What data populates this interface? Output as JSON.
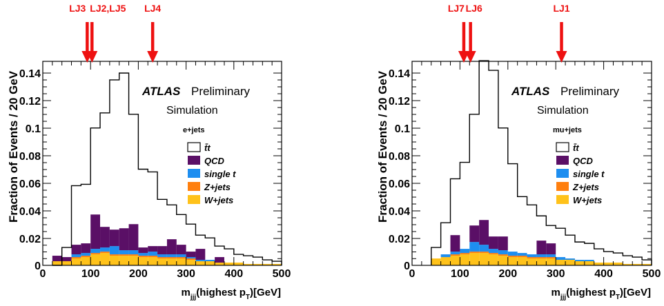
{
  "chart_data": [
    {
      "type": "bar",
      "stacked": true,
      "channel": "e+jets",
      "ylabel": "Fraction of Events / 20 GeV",
      "xlabel": "m_jjj(highest p_T)[GeV]",
      "xlabel_parts": {
        "main": "m",
        "sub": "jjj",
        "mid": "(highest p",
        "sub2": "T",
        "tail": ")[GeV]"
      },
      "atlas_label": "ATLAS",
      "preliminary_label": "Preliminary",
      "simulation_label": "Simulation",
      "xlim": [
        0,
        500
      ],
      "ylim": [
        0,
        0.15
      ],
      "xticks": [
        0,
        100,
        200,
        300,
        400,
        500
      ],
      "yticks": [
        0,
        0.02,
        0.04,
        0.06,
        0.08,
        0.1,
        0.12,
        0.14
      ],
      "ytick_labels": [
        "0",
        "0.02",
        "0.04",
        "0.06",
        "0.08",
        "0.1",
        "0.12",
        "0.14"
      ],
      "bin_edges": [
        20,
        40,
        60,
        80,
        100,
        120,
        140,
        160,
        180,
        200,
        220,
        240,
        260,
        280,
        300,
        320,
        340,
        360,
        380,
        400,
        420,
        440,
        460,
        480,
        500
      ],
      "legend": [
        {
          "name": "t̄t",
          "color": "#ffffff",
          "style": "outline"
        },
        {
          "name": "QCD",
          "color": "#5a0f66"
        },
        {
          "name": "single t",
          "color": "#1e8ef0"
        },
        {
          "name": "Z+jets",
          "color": "#ff7f0e"
        },
        {
          "name": "W+jets",
          "color": "#ffc21a"
        }
      ],
      "ttbar": [
        0.0,
        0.013,
        0.058,
        0.059,
        0.1,
        0.111,
        0.135,
        0.14,
        0.11,
        0.07,
        0.068,
        0.048,
        0.044,
        0.037,
        0.03,
        0.022,
        0.02,
        0.014,
        0.012,
        0.008,
        0.007,
        0.006,
        0.004,
        0.003
      ],
      "wjets": [
        0.003,
        0.003,
        0.005,
        0.006,
        0.008,
        0.009,
        0.007,
        0.007,
        0.007,
        0.006,
        0.006,
        0.005,
        0.005,
        0.005,
        0.004,
        0.003,
        0.003,
        0.002,
        0.002,
        0.002,
        0.001,
        0.001,
        0.001,
        0.001
      ],
      "zjets": [
        0.0,
        0.0,
        0.001,
        0.001,
        0.001,
        0.001,
        0.001,
        0.001,
        0.001,
        0.001,
        0.001,
        0.001,
        0.001,
        0.001,
        0.001,
        0.0,
        0.0,
        0.0,
        0.0,
        0.0,
        0.0,
        0.0,
        0.0,
        0.0
      ],
      "singlet": [
        0.0,
        0.0,
        0.002,
        0.002,
        0.003,
        0.003,
        0.006,
        0.003,
        0.003,
        0.002,
        0.003,
        0.002,
        0.002,
        0.002,
        0.001,
        0.001,
        0.001,
        0.0,
        0.0,
        0.0,
        0.0,
        0.0,
        0.0,
        0.0
      ],
      "qcd": [
        0.004,
        0.003,
        0.007,
        0.007,
        0.025,
        0.015,
        0.012,
        0.016,
        0.019,
        0.004,
        0.004,
        0.006,
        0.011,
        0.007,
        0.004,
        0.008,
        0.0,
        0.004,
        0.0,
        0.0,
        0.0,
        0.0,
        0.0,
        0.0
      ],
      "markers": [
        {
          "label": "LJ3",
          "x": 93
        },
        {
          "label": "LJ2,LJ5",
          "x": 103
        },
        {
          "label": "LJ4",
          "x": 230
        }
      ]
    },
    {
      "type": "bar",
      "stacked": true,
      "channel": "mu+jets",
      "ylabel": "Fraction of Events / 20 GeV",
      "xlabel": "m_jjj(highest p_T)[GeV]",
      "xlabel_parts": {
        "main": "m",
        "sub": "jjj",
        "mid": "(highest p",
        "sub2": "T",
        "tail": ")[GeV]"
      },
      "atlas_label": "ATLAS",
      "preliminary_label": "Preliminary",
      "simulation_label": "Simulation",
      "xlim": [
        0,
        500
      ],
      "ylim": [
        0,
        0.16
      ],
      "xticks": [
        0,
        100,
        200,
        300,
        400,
        500
      ],
      "yticks": [
        0,
        0.02,
        0.04,
        0.06,
        0.08,
        0.1,
        0.12,
        0.14
      ],
      "ytick_labels": [
        "0",
        "0.02",
        "0.04",
        "0.06",
        "0.08",
        "0.1",
        "0.12",
        "0.14"
      ],
      "bin_edges": [
        40,
        60,
        80,
        100,
        120,
        140,
        160,
        180,
        200,
        220,
        240,
        260,
        280,
        300,
        320,
        340,
        360,
        380,
        400,
        420,
        440,
        460,
        480,
        500
      ],
      "legend": [
        {
          "name": "t̄t",
          "color": "#ffffff",
          "style": "outline"
        },
        {
          "name": "QCD",
          "color": "#5a0f66"
        },
        {
          "name": "single t",
          "color": "#1e8ef0"
        },
        {
          "name": "Z+jets",
          "color": "#ff7f0e"
        },
        {
          "name": "W+jets",
          "color": "#ffc21a"
        }
      ],
      "ttbar": [
        0.013,
        0.031,
        0.063,
        0.075,
        0.11,
        0.149,
        0.142,
        0.1,
        0.074,
        0.05,
        0.044,
        0.036,
        0.029,
        0.027,
        0.022,
        0.017,
        0.016,
        0.012,
        0.01,
        0.009,
        0.007,
        0.006,
        0.004
      ],
      "wjets": [
        0.005,
        0.006,
        0.007,
        0.008,
        0.009,
        0.009,
        0.008,
        0.007,
        0.006,
        0.006,
        0.005,
        0.005,
        0.005,
        0.004,
        0.004,
        0.003,
        0.003,
        0.002,
        0.002,
        0.002,
        0.001,
        0.001,
        0.001
      ],
      "zjets": [
        0.0,
        0.0,
        0.001,
        0.001,
        0.001,
        0.001,
        0.001,
        0.001,
        0.001,
        0.001,
        0.001,
        0.001,
        0.001,
        0.0,
        0.0,
        0.0,
        0.0,
        0.0,
        0.0,
        0.0,
        0.0,
        0.0,
        0.0
      ],
      "singlet": [
        0.0,
        0.002,
        0.002,
        0.003,
        0.007,
        0.005,
        0.003,
        0.003,
        0.003,
        0.002,
        0.002,
        0.002,
        0.002,
        0.002,
        0.001,
        0.001,
        0.001,
        0.0,
        0.0,
        0.0,
        0.0,
        0.0,
        0.0
      ],
      "qcd": [
        0.0,
        0.0,
        0.012,
        0.0,
        0.012,
        0.018,
        0.009,
        0.01,
        0.0,
        0.0,
        0.0,
        0.01,
        0.008,
        0.0,
        0.0,
        0.0,
        0.0,
        0.0,
        0.0,
        0.0,
        0.0,
        0.0,
        0.0
      ],
      "markers": [
        {
          "label": "LJ7",
          "x": 108
        },
        {
          "label": "LJ6",
          "x": 122
        },
        {
          "label": "LJ1",
          "x": 312
        }
      ]
    }
  ]
}
